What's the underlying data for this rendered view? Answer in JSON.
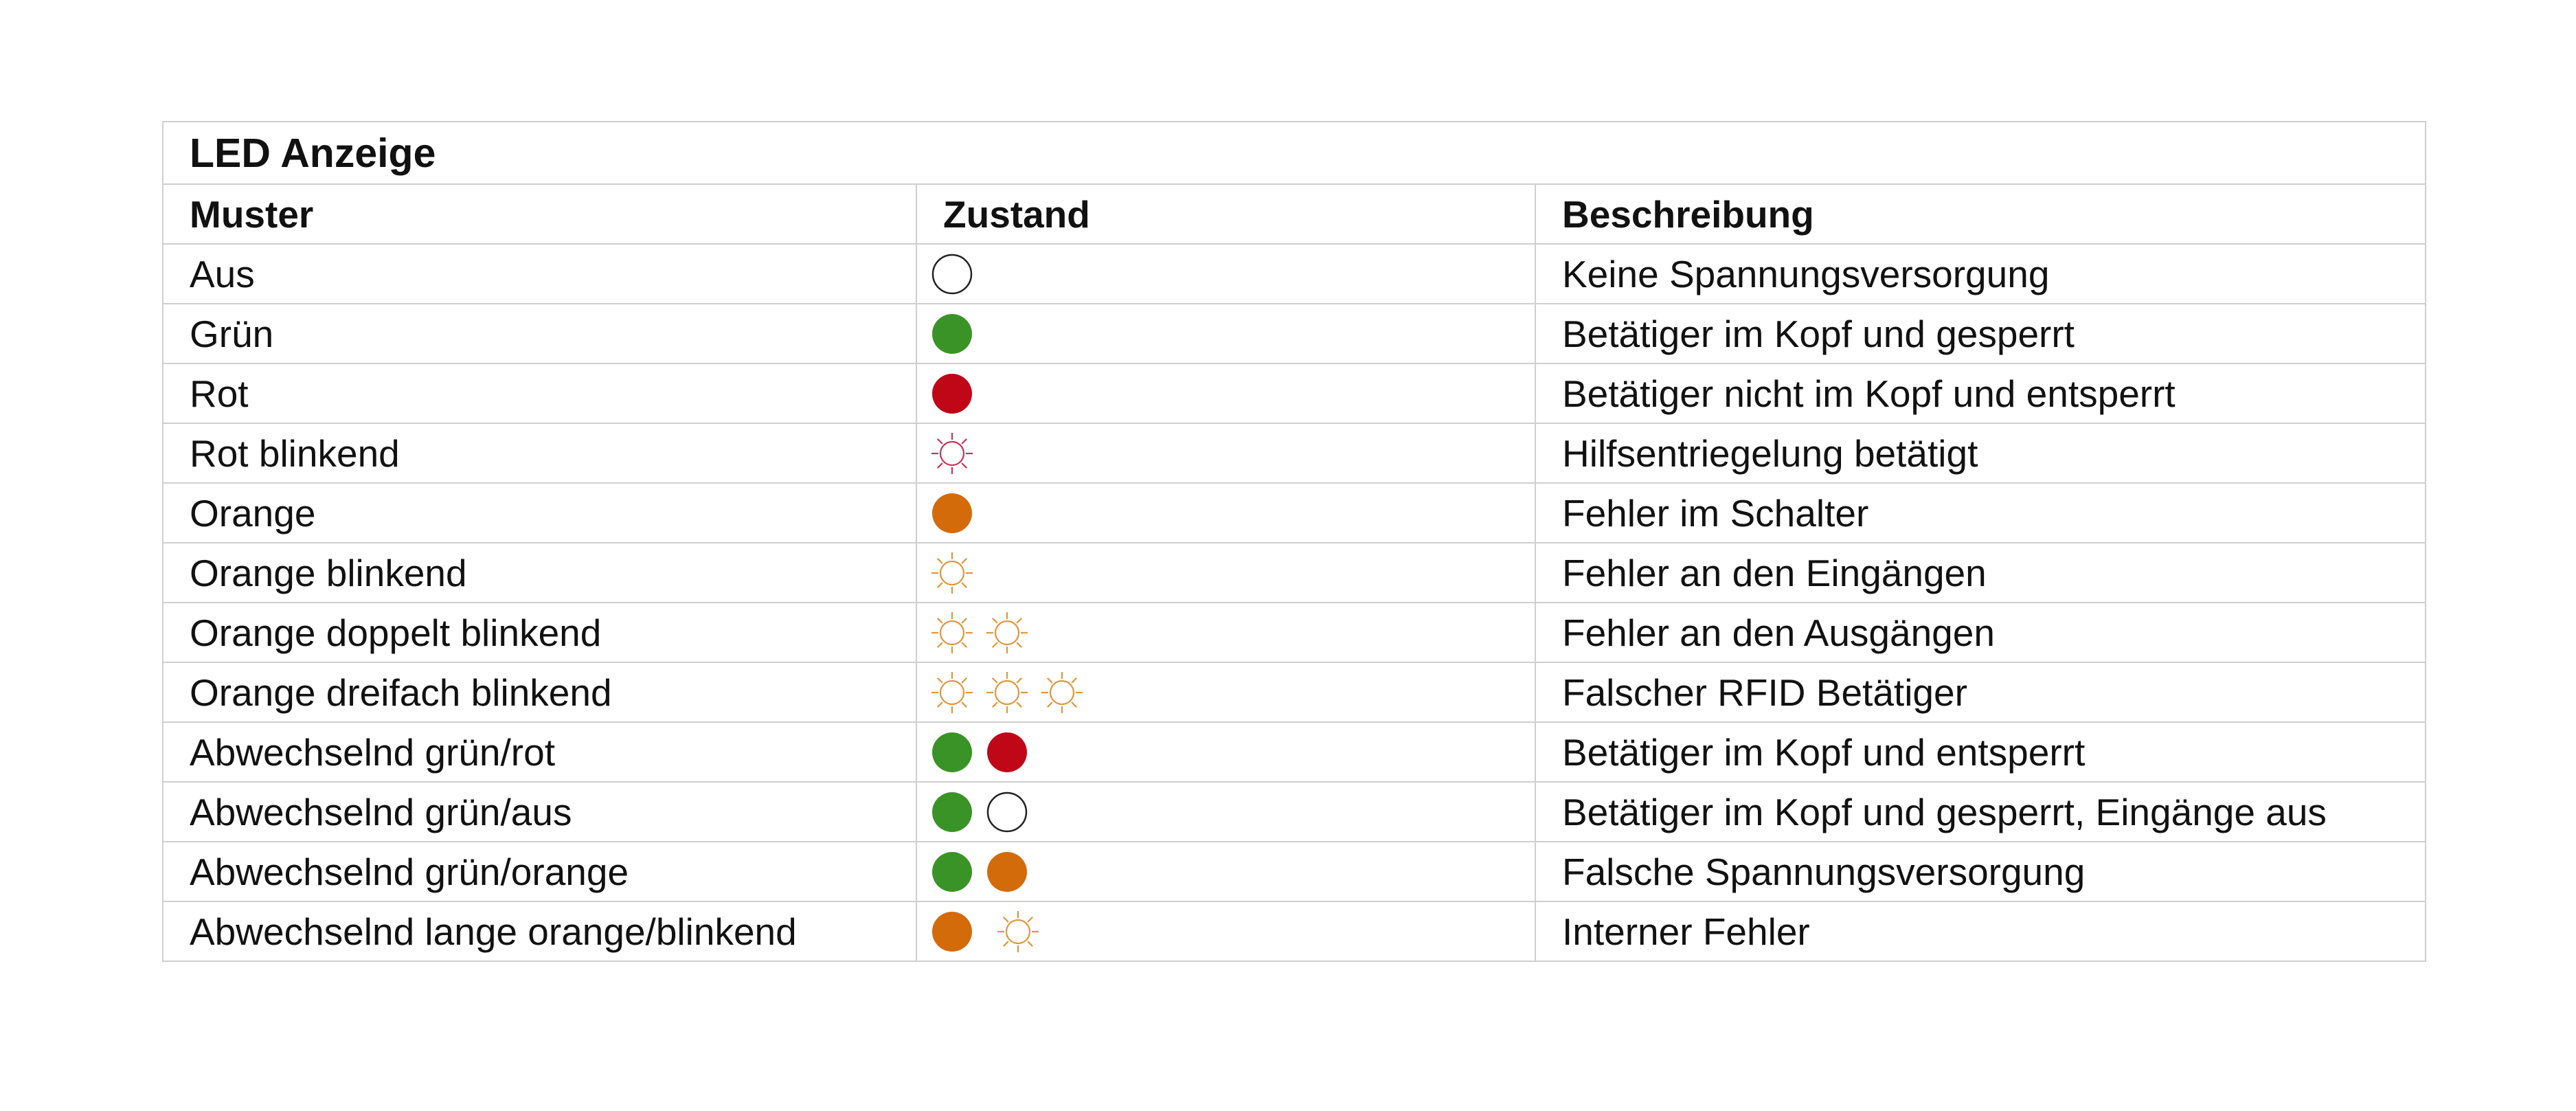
{
  "table": {
    "title": "LED Anzeige",
    "headers": [
      "Muster",
      "Zustand",
      "Beschreibung"
    ],
    "colors": {
      "green": "#3a9326",
      "red": "#c00717",
      "orange": "#d36b0a",
      "off_stroke": "#222222",
      "red_blink": "#c8335a",
      "orange_blink": "#e0963a"
    },
    "rows": [
      {
        "pattern": "Aus",
        "state": [
          "off"
        ],
        "description": "Keine Spannungsversorgung"
      },
      {
        "pattern": "Grün",
        "state": [
          "green"
        ],
        "description": "Betätiger im Kopf und gesperrt"
      },
      {
        "pattern": "Rot",
        "state": [
          "red"
        ],
        "description": "Betätiger nicht im Kopf und entsperrt"
      },
      {
        "pattern": "Rot blinkend",
        "state": [
          "red-blink"
        ],
        "description": "Hilfsentriegelung betätigt"
      },
      {
        "pattern": "Orange",
        "state": [
          "orange"
        ],
        "description": "Fehler im Schalter"
      },
      {
        "pattern": "Orange blinkend",
        "state": [
          "orange-blink"
        ],
        "description": "Fehler an den Eingängen"
      },
      {
        "pattern": "Orange doppelt blinkend",
        "state": [
          "orange-blink",
          "orange-blink"
        ],
        "description": "Fehler an den Ausgängen"
      },
      {
        "pattern": "Orange dreifach blinkend",
        "state": [
          "orange-blink",
          "orange-blink",
          "orange-blink"
        ],
        "description": "Falscher RFID Betätiger"
      },
      {
        "pattern": "Abwechselnd grün/rot",
        "state": [
          "green",
          "red"
        ],
        "description": "Betätiger im Kopf und entsperrt"
      },
      {
        "pattern": "Abwechselnd grün/aus",
        "state": [
          "green",
          "off"
        ],
        "description": "Betätiger im Kopf und gesperrt, Eingänge aus"
      },
      {
        "pattern": "Abwechselnd grün/orange",
        "state": [
          "green",
          "orange"
        ],
        "description": "Falsche Spannungsversorgung"
      },
      {
        "pattern": "Abwechselnd lange orange/blinkend",
        "state": [
          "orange",
          "orange-blink"
        ],
        "description": "Interner Fehler"
      }
    ]
  }
}
